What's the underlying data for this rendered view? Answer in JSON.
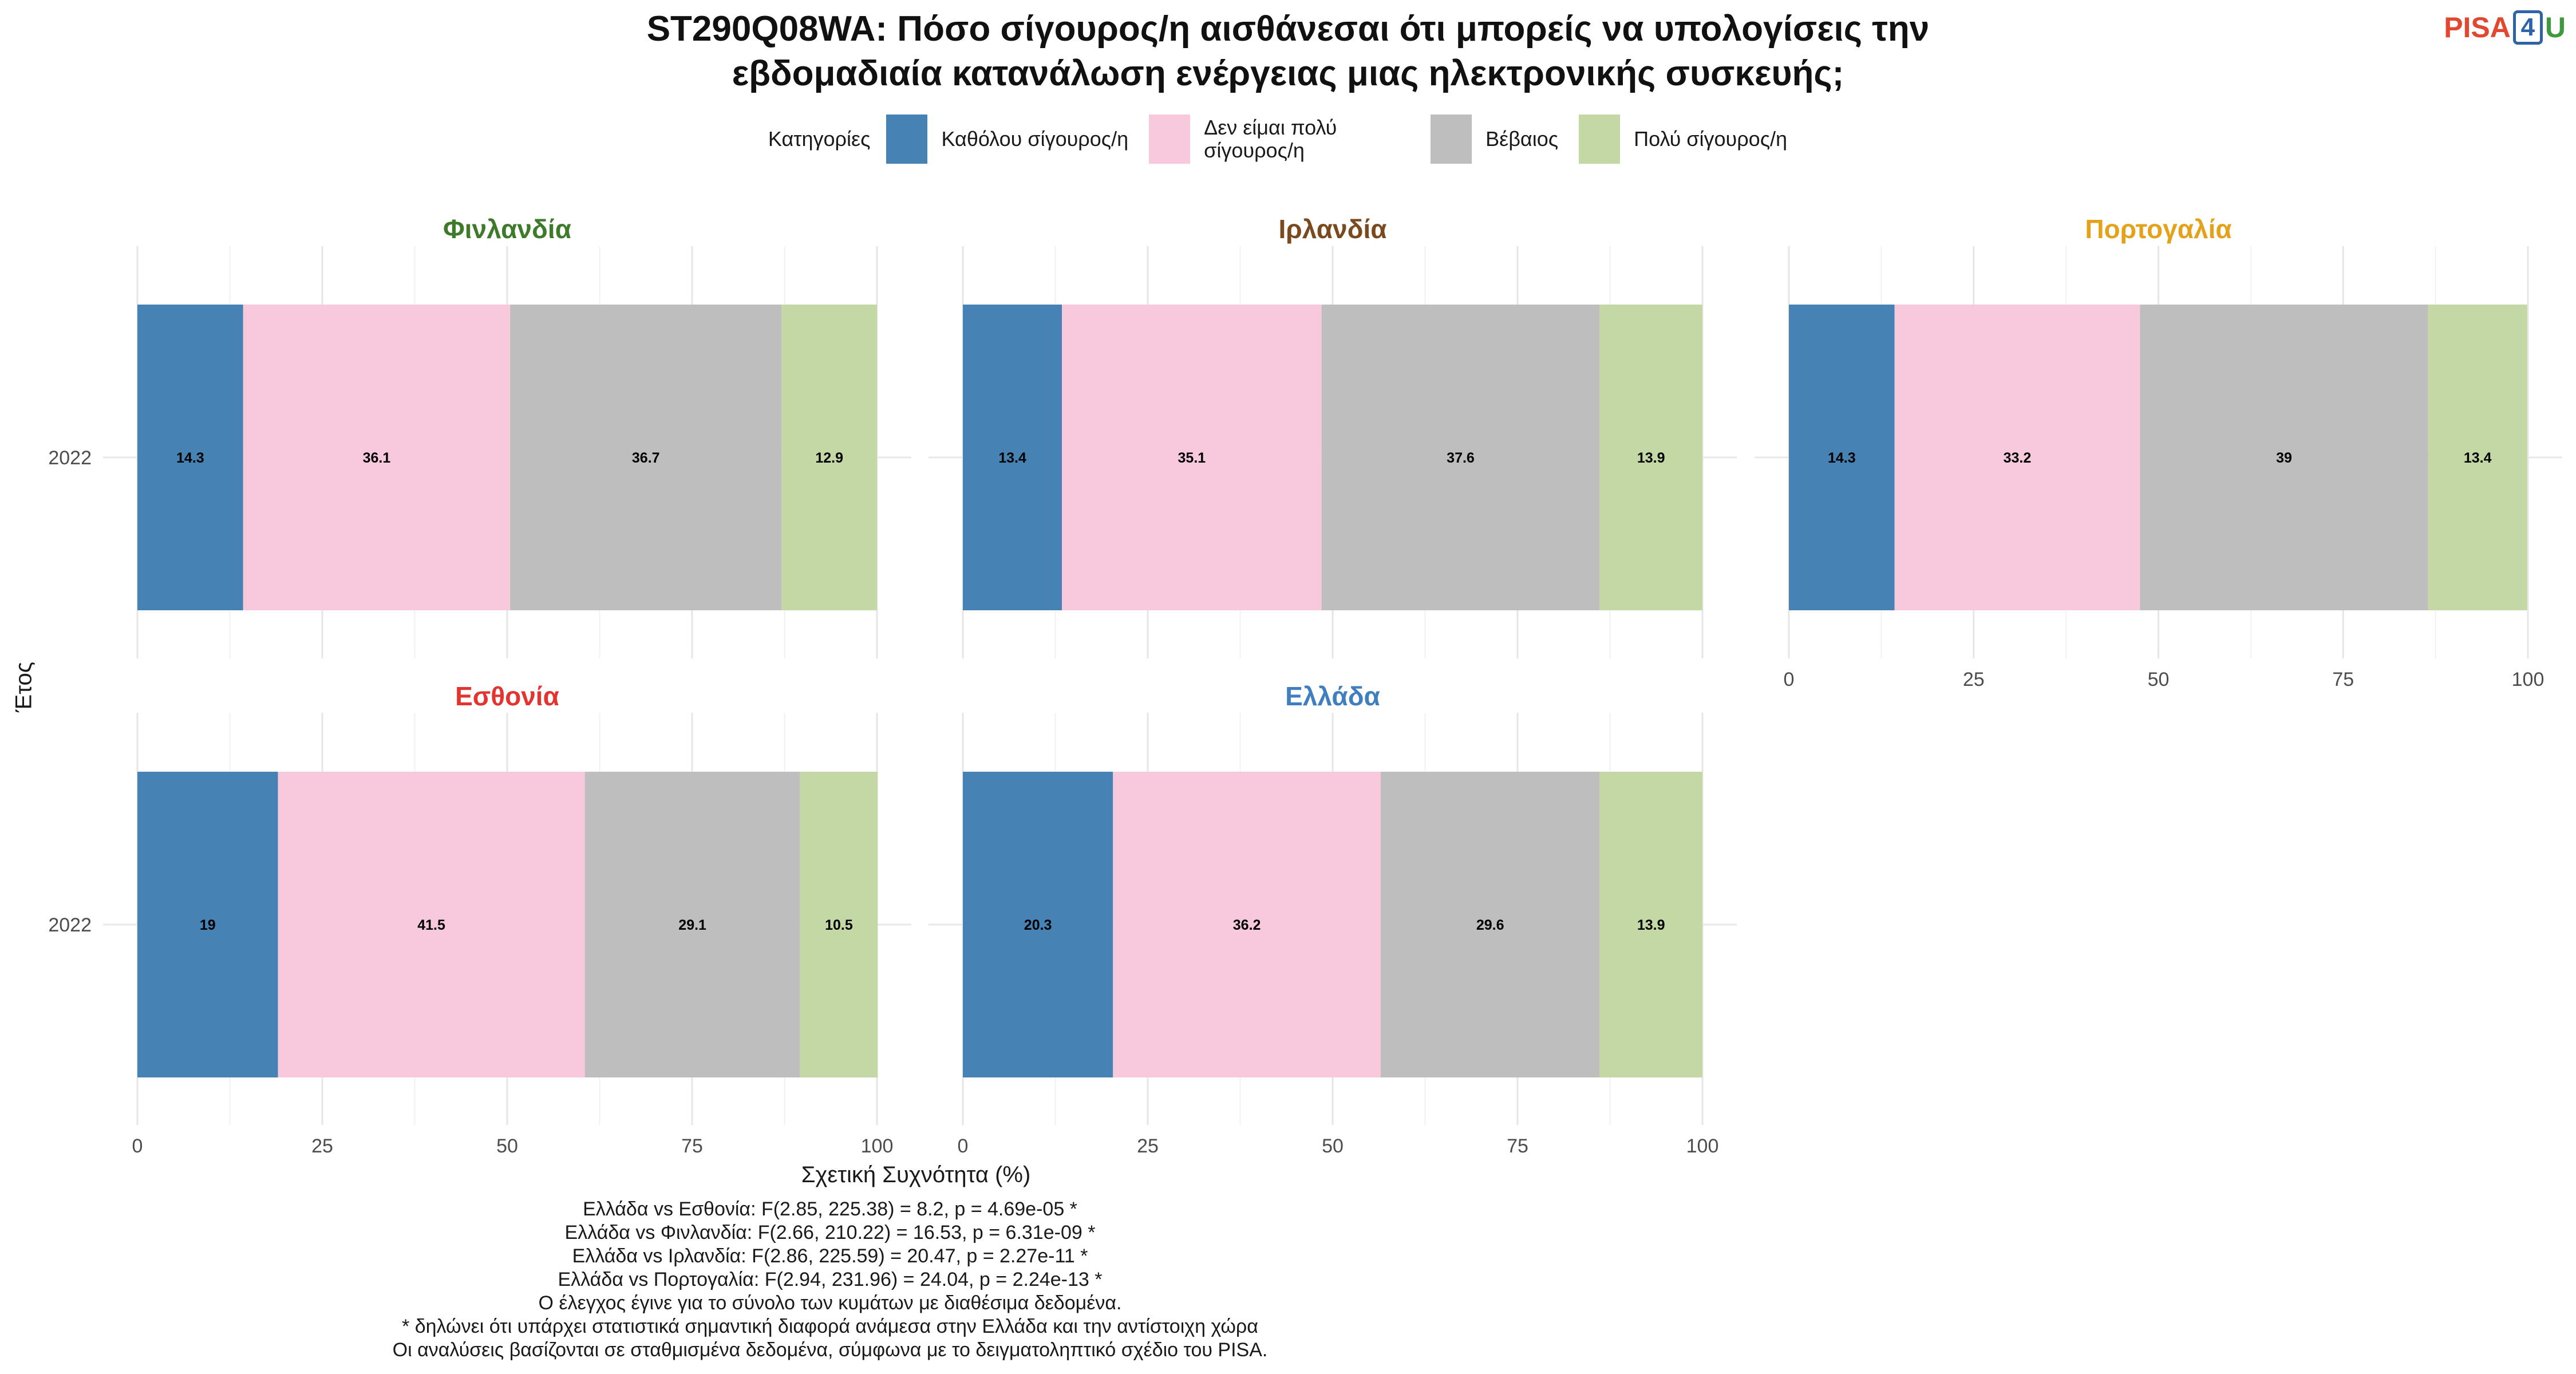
{
  "title_lines": [
    "ST290Q08WA: Πόσο σίγουρος/η αισθάνεσαι ότι μπορείς να υπολογίσεις την",
    "εβδομαδιαία κατανάλωση ενέργειας μιας ηλεκτρονικής συσκευής;"
  ],
  "logo": {
    "part1": "PISA",
    "part2": "4",
    "part3": "U"
  },
  "legend": {
    "title": "Κατηγορίες",
    "items": [
      {
        "label": "Καθόλου σίγουρος/η",
        "color": "#4682b4"
      },
      {
        "label": "Δεν είμαι πολύ σίγουρος/η",
        "color": "#f8c8dc"
      },
      {
        "label": "Βέβαιος",
        "color": "#bebebe"
      },
      {
        "label": "Πολύ σίγουρος/η",
        "color": "#c4d8a6"
      }
    ]
  },
  "chart_data": {
    "type": "bar",
    "orientation": "horizontal",
    "stacked": true,
    "xlabel": "Σχετική Συχνότητα (%)",
    "ylabel": "Έτος",
    "xlim": [
      0,
      100
    ],
    "xticks": [
      0,
      25,
      50,
      75,
      100
    ],
    "categories": [
      "Καθόλου σίγουρος/η",
      "Δεν είμαι πολύ σίγουρος/η",
      "Βέβαιος",
      "Πολύ σίγουρος/η"
    ],
    "panels": [
      {
        "name": "Φινλανδία",
        "color": "#3d7a2a",
        "year": "2022",
        "values": [
          14.3,
          36.1,
          36.7,
          12.9
        ]
      },
      {
        "name": "Ιρλανδία",
        "color": "#7a4a1e",
        "year": "2022",
        "values": [
          13.4,
          35.1,
          37.6,
          13.9
        ]
      },
      {
        "name": "Πορτογαλία",
        "color": "#e3a21a",
        "year": "2022",
        "values": [
          14.3,
          33.2,
          39,
          13.4
        ]
      },
      {
        "name": "Εσθονία",
        "color": "#e3342f",
        "year": "2022",
        "values": [
          19,
          41.5,
          29.1,
          10.5
        ]
      },
      {
        "name": "Ελλάδα",
        "color": "#3f7fc0",
        "year": "2022",
        "values": [
          20.3,
          36.2,
          29.6,
          13.9
        ]
      }
    ]
  },
  "notes": [
    "Ελλάδα vs Εσθονία: F(2.85, 225.38) = 8.2, p = 4.69e-05 *",
    "Ελλάδα vs Φινλανδία: F(2.66, 210.22) = 16.53, p = 6.31e-09 *",
    "Ελλάδα vs Ιρλανδία: F(2.86, 225.59) = 20.47, p = 2.27e-11 *",
    "Ελλάδα vs Πορτογαλία: F(2.94, 231.96) = 24.04, p = 2.24e-13 *",
    "Ο έλεγχος έγινε για το σύνολο των κυμάτων με διαθέσιμα δεδομένα.",
    "* δηλώνει ότι υπάρχει στατιστικά σημαντική διαφορά ανάμεσα στην Ελλάδα και την αντίστοιχη χώρα",
    "Οι αναλύσεις βασίζονται σε σταθμισμένα δεδομένα, σύμφωνα με το δειγματοληπτικό σχέδιο του PISA."
  ]
}
